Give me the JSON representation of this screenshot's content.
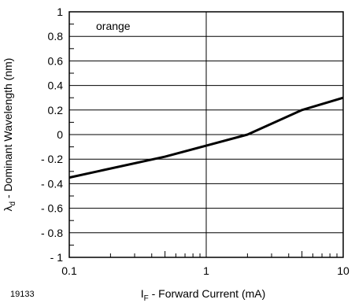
{
  "chart_data": {
    "type": "line",
    "title": "",
    "annotation": "orange",
    "figure_id": "19133",
    "xlabel": {
      "main": "I",
      "sub": "F",
      "rest": " - Forward Current (mA)"
    },
    "ylabel": {
      "main": "λ",
      "sub": "d",
      "rest": " - Dominant Wavelength (nm)"
    },
    "xscale": "log",
    "xlim": [
      0.1,
      10
    ],
    "ylim": [
      -1,
      1
    ],
    "x_ticks": [
      {
        "value": 0.1,
        "label": "0.1"
      },
      {
        "value": 1,
        "label": "1"
      },
      {
        "value": 10,
        "label": "10"
      }
    ],
    "y_ticks": [
      {
        "value": 1,
        "label": "1"
      },
      {
        "value": 0.8,
        "label": "0.8"
      },
      {
        "value": 0.6,
        "label": "0.6"
      },
      {
        "value": 0.4,
        "label": "0.4"
      },
      {
        "value": 0.2,
        "label": "0.2"
      },
      {
        "value": 0,
        "label": "0"
      },
      {
        "value": -0.2,
        "label": "- 0.2"
      },
      {
        "value": -0.4,
        "label": "- 0.4"
      },
      {
        "value": -0.6,
        "label": "- 0.6"
      },
      {
        "value": -0.8,
        "label": "- 0.8"
      },
      {
        "value": -1,
        "label": "- 1"
      }
    ],
    "grid": true,
    "series": [
      {
        "color": "#000000",
        "points": [
          {
            "x": 0.1,
            "y": -0.35
          },
          {
            "x": 0.5,
            "y": -0.18
          },
          {
            "x": 1,
            "y": -0.09
          },
          {
            "x": 2,
            "y": 0.0
          },
          {
            "x": 5,
            "y": 0.2
          },
          {
            "x": 10,
            "y": 0.3
          }
        ]
      }
    ]
  }
}
